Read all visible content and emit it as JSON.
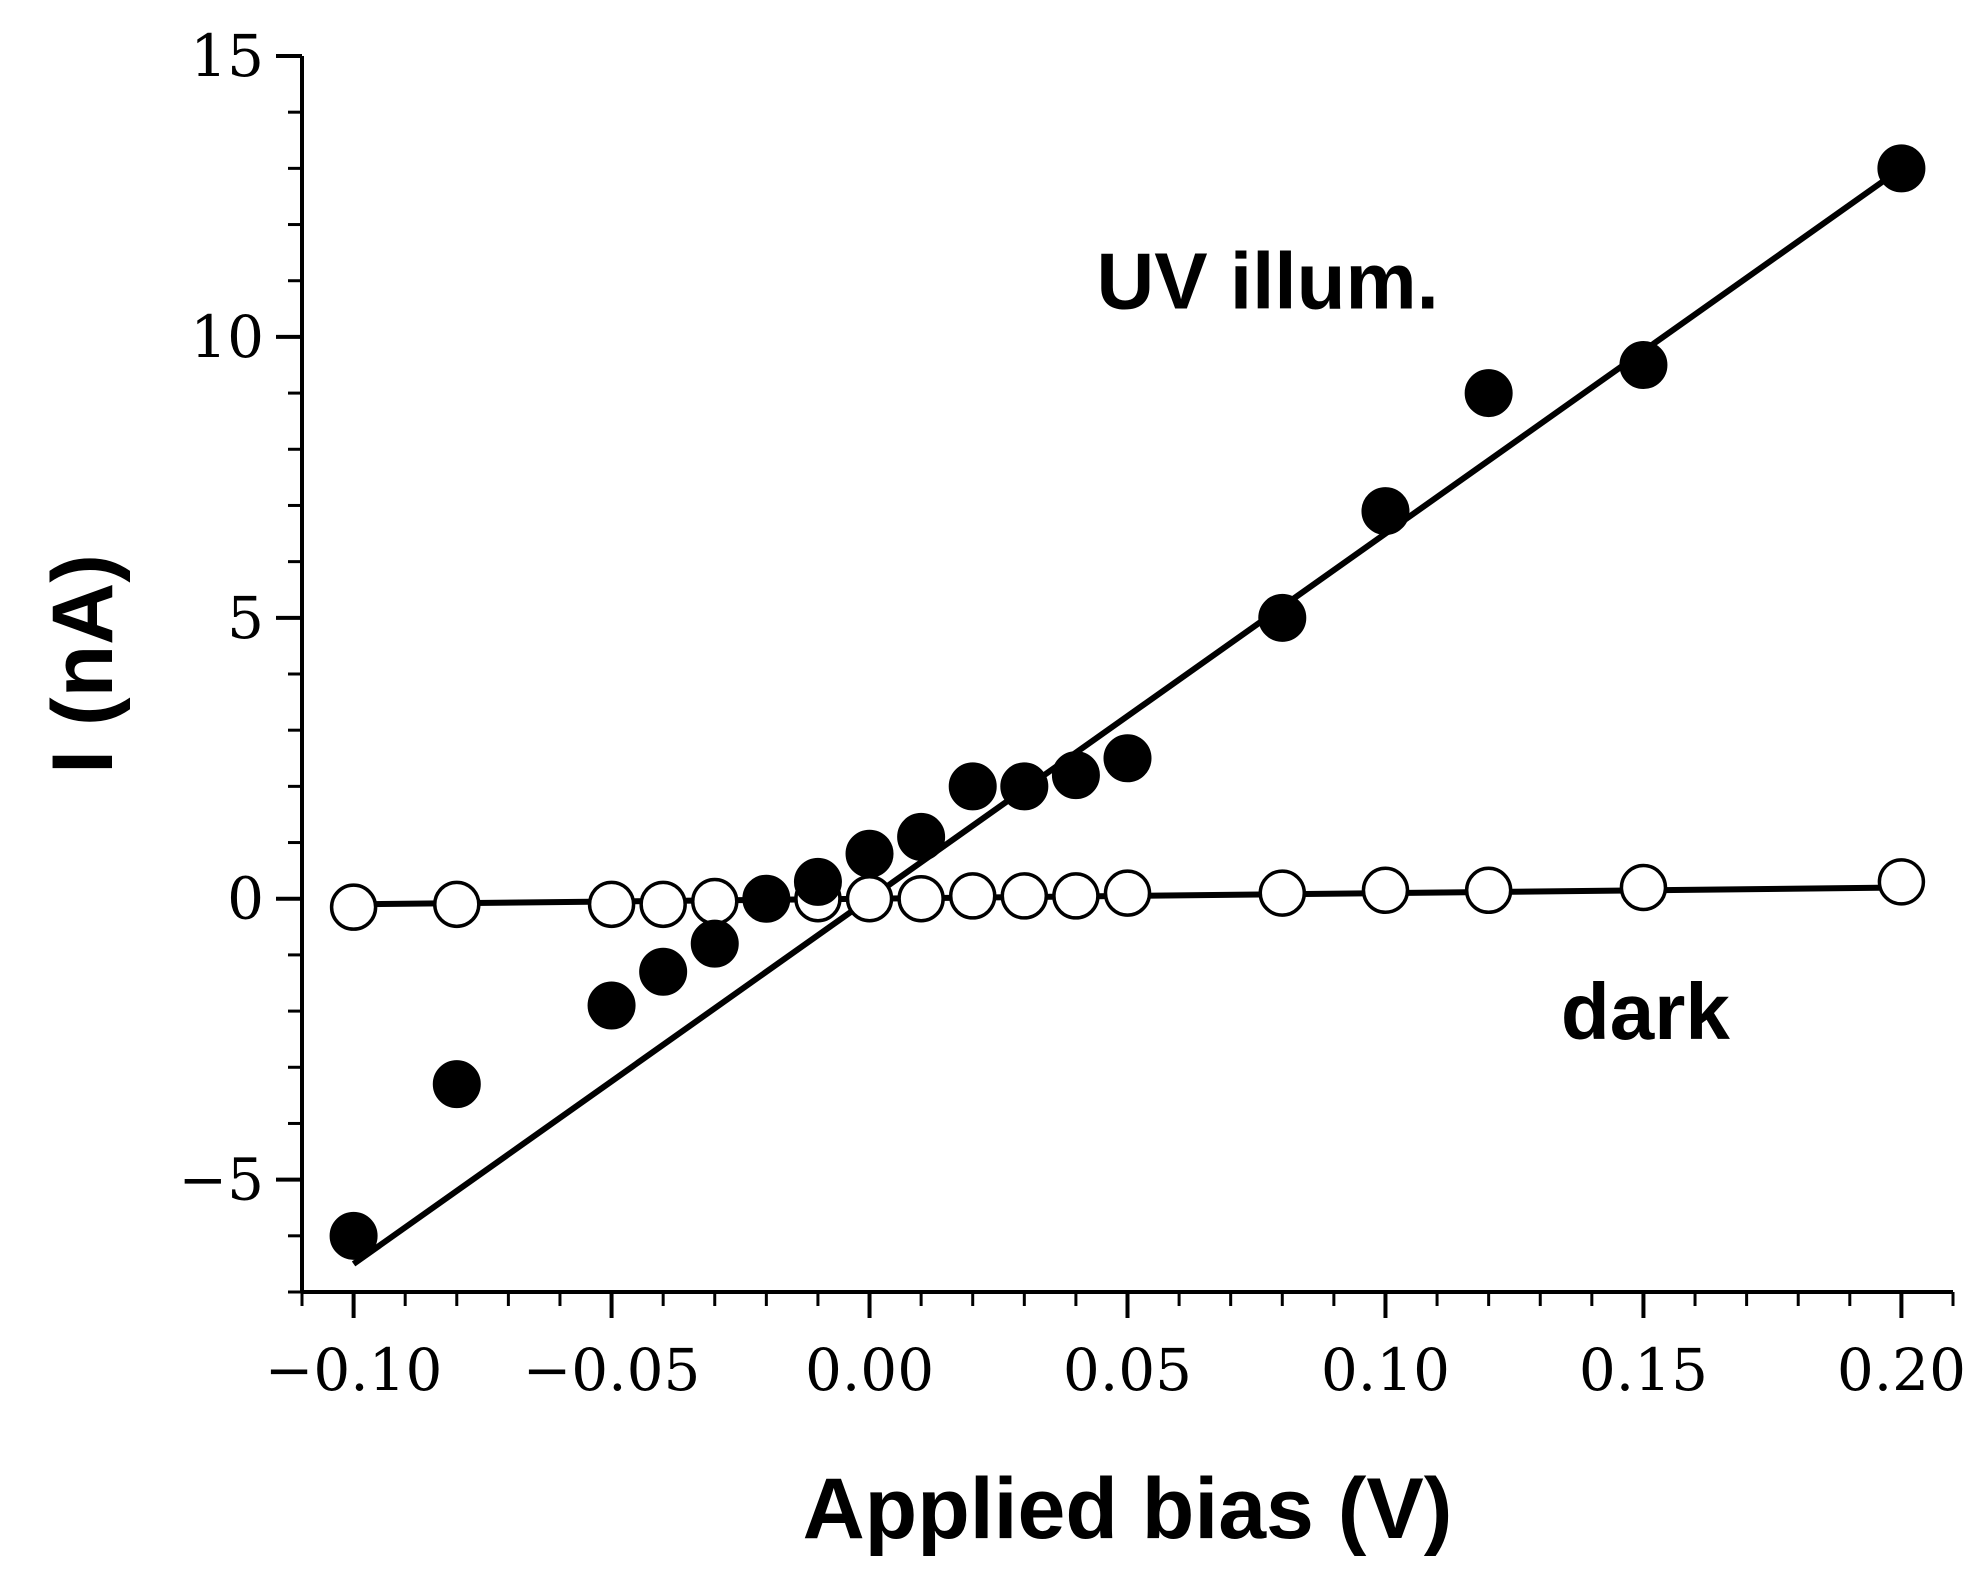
{
  "chart_data": {
    "type": "scatter",
    "xlabel": "Applied bias (V)",
    "ylabel": "I (nA)",
    "xlim": [
      -0.11,
      0.21
    ],
    "ylim": [
      -7,
      15
    ],
    "xticks": [
      -0.1,
      -0.05,
      0.0,
      0.05,
      0.1,
      0.15,
      0.2
    ],
    "xtick_labels": [
      "−0.10",
      "−0.05",
      "0.00",
      "0.05",
      "0.10",
      "0.15",
      "0.20"
    ],
    "yticks": [
      -5,
      0,
      5,
      10,
      15
    ],
    "ytick_labels": [
      "−5",
      "0",
      "5",
      "10",
      "15"
    ],
    "annotations": [
      {
        "text": "UV illum.",
        "x": 0.044,
        "y": 11
      },
      {
        "text": "dark",
        "x": 0.134,
        "y": -2
      }
    ],
    "series": [
      {
        "marker": "filled-circle",
        "x": [
          -0.1,
          -0.08,
          -0.05,
          -0.04,
          -0.03,
          -0.02,
          -0.01,
          0.0,
          0.01,
          0.02,
          0.03,
          0.04,
          0.05,
          0.08,
          0.1,
          0.12,
          0.15,
          0.2
        ],
        "y": [
          -6.0,
          -3.3,
          -1.9,
          -1.3,
          -0.8,
          0.0,
          0.3,
          0.8,
          1.1,
          2.0,
          2.0,
          2.2,
          2.5,
          5.0,
          6.9,
          9.0,
          9.5,
          13.0
        ],
        "fit": {
          "x": [
            -0.1,
            0.2
          ],
          "y": [
            -6.5,
            13.0
          ]
        }
      },
      {
        "marker": "open-circle",
        "x": [
          -0.1,
          -0.08,
          -0.05,
          -0.04,
          -0.03,
          -0.01,
          0.0,
          0.01,
          0.02,
          0.03,
          0.04,
          0.05,
          0.08,
          0.1,
          0.12,
          0.15,
          0.2
        ],
        "y": [
          -0.15,
          -0.1,
          -0.1,
          -0.1,
          -0.05,
          0.0,
          0.0,
          0.0,
          0.05,
          0.05,
          0.05,
          0.1,
          0.1,
          0.15,
          0.15,
          0.2,
          0.3
        ],
        "fit": {
          "x": [
            -0.1,
            0.2
          ],
          "y": [
            -0.1,
            0.2
          ]
        }
      }
    ]
  }
}
